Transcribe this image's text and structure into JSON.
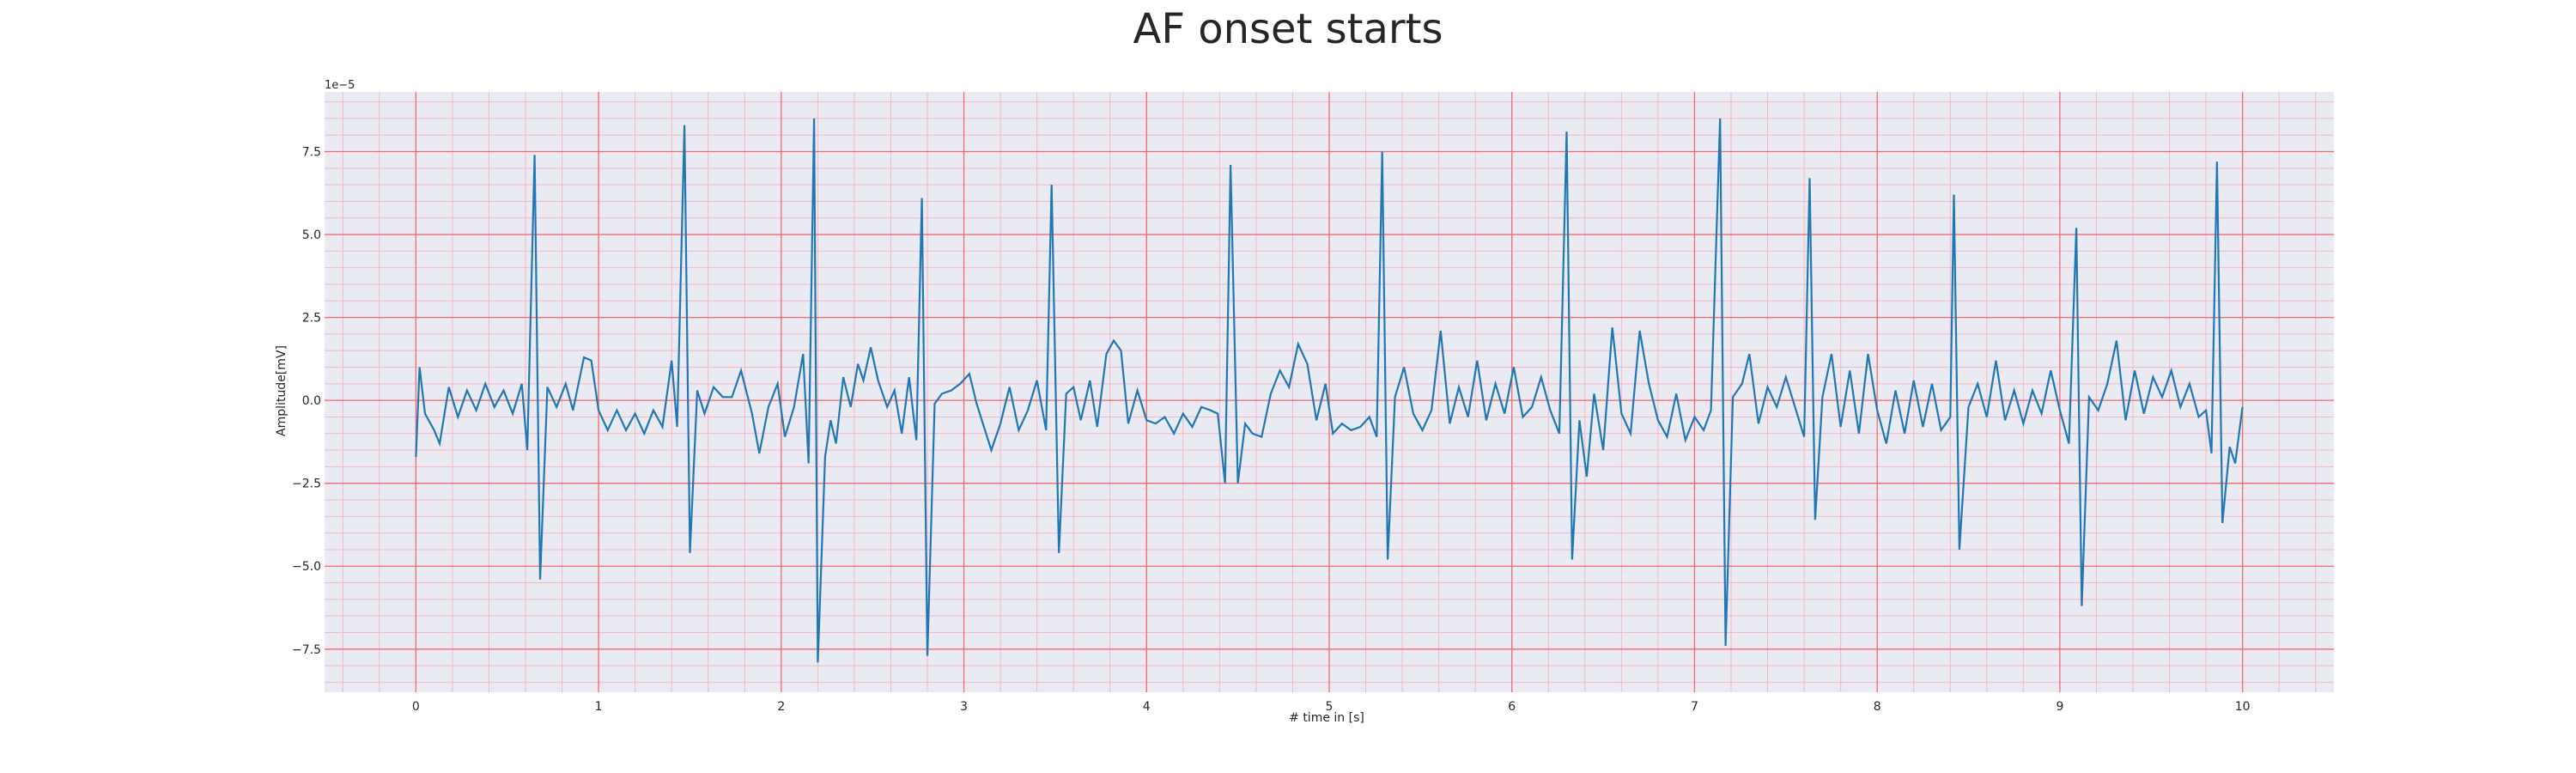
{
  "chart_data": {
    "type": "line",
    "title": "AF onset starts",
    "xlabel": "# time in [s]",
    "ylabel": "Amplitude[mV]",
    "y_offset_label": "1e−5",
    "xlim": [
      -0.5,
      10.5
    ],
    "ylim": [
      -8.8,
      9.3
    ],
    "x_ticks": [
      0,
      1,
      2,
      3,
      4,
      5,
      6,
      7,
      8,
      9,
      10
    ],
    "x_tick_labels": [
      "0",
      "1",
      "2",
      "3",
      "4",
      "5",
      "6",
      "7",
      "8",
      "9",
      "10"
    ],
    "y_ticks": [
      -7.5,
      -5.0,
      -2.5,
      0.0,
      2.5,
      5.0,
      7.5
    ],
    "y_tick_labels": [
      "−7.5",
      "−5.0",
      "−2.5",
      "0.0",
      "2.5",
      "5.0",
      "7.5"
    ],
    "grid": true,
    "minor_grid": true,
    "colors": {
      "background": "#eaeaf2",
      "major_grid": "#f26b6b",
      "minor_grid": "#f5b7c4",
      "line": "#1f77b4",
      "text": "#262626"
    },
    "series": [
      {
        "values": [
          [
            0.0,
            -1.7
          ],
          [
            0.02,
            1.0
          ],
          [
            0.05,
            -0.4
          ],
          [
            0.1,
            -0.9
          ],
          [
            0.13,
            -1.3
          ],
          [
            0.18,
            0.4
          ],
          [
            0.23,
            -0.5
          ],
          [
            0.28,
            0.3
          ],
          [
            0.33,
            -0.3
          ],
          [
            0.38,
            0.5
          ],
          [
            0.43,
            -0.2
          ],
          [
            0.48,
            0.3
          ],
          [
            0.53,
            -0.4
          ],
          [
            0.58,
            0.5
          ],
          [
            0.61,
            -1.5
          ],
          [
            0.65,
            7.4
          ],
          [
            0.68,
            -5.4
          ],
          [
            0.72,
            0.4
          ],
          [
            0.77,
            -0.2
          ],
          [
            0.82,
            0.5
          ],
          [
            0.86,
            -0.3
          ],
          [
            0.92,
            1.3
          ],
          [
            0.96,
            1.2
          ],
          [
            1.0,
            -0.3
          ],
          [
            1.05,
            -0.9
          ],
          [
            1.1,
            -0.3
          ],
          [
            1.15,
            -0.9
          ],
          [
            1.2,
            -0.4
          ],
          [
            1.25,
            -1.0
          ],
          [
            1.3,
            -0.3
          ],
          [
            1.35,
            -0.8
          ],
          [
            1.4,
            1.2
          ],
          [
            1.43,
            -0.8
          ],
          [
            1.47,
            8.3
          ],
          [
            1.5,
            -4.6
          ],
          [
            1.54,
            0.3
          ],
          [
            1.58,
            -0.4
          ],
          [
            1.63,
            0.4
          ],
          [
            1.68,
            0.1
          ],
          [
            1.73,
            0.1
          ],
          [
            1.78,
            0.9
          ],
          [
            1.84,
            -0.4
          ],
          [
            1.88,
            -1.6
          ],
          [
            1.93,
            -0.2
          ],
          [
            1.98,
            0.5
          ],
          [
            2.02,
            -1.1
          ],
          [
            2.07,
            -0.2
          ],
          [
            2.12,
            1.4
          ],
          [
            2.15,
            -1.9
          ],
          [
            2.18,
            8.5
          ],
          [
            2.2,
            -7.9
          ],
          [
            2.24,
            -1.7
          ],
          [
            2.27,
            -0.6
          ],
          [
            2.3,
            -1.3
          ],
          [
            2.34,
            0.7
          ],
          [
            2.38,
            -0.2
          ],
          [
            2.42,
            1.1
          ],
          [
            2.45,
            0.6
          ],
          [
            2.49,
            1.6
          ],
          [
            2.53,
            0.6
          ],
          [
            2.58,
            -0.2
          ],
          [
            2.62,
            0.3
          ],
          [
            2.66,
            -1.0
          ],
          [
            2.7,
            0.7
          ],
          [
            2.74,
            -1.2
          ],
          [
            2.77,
            6.1
          ],
          [
            2.8,
            -7.7
          ],
          [
            2.84,
            -0.1
          ],
          [
            2.88,
            0.2
          ],
          [
            2.93,
            0.3
          ],
          [
            2.98,
            0.5
          ],
          [
            3.03,
            0.8
          ],
          [
            3.07,
            -0.1
          ],
          [
            3.11,
            -0.8
          ],
          [
            3.15,
            -1.5
          ],
          [
            3.2,
            -0.7
          ],
          [
            3.25,
            0.4
          ],
          [
            3.3,
            -0.9
          ],
          [
            3.35,
            -0.3
          ],
          [
            3.4,
            0.6
          ],
          [
            3.45,
            -0.9
          ],
          [
            3.48,
            6.5
          ],
          [
            3.52,
            -4.6
          ],
          [
            3.56,
            0.2
          ],
          [
            3.6,
            0.4
          ],
          [
            3.64,
            -0.6
          ],
          [
            3.69,
            0.6
          ],
          [
            3.73,
            -0.8
          ],
          [
            3.78,
            1.4
          ],
          [
            3.82,
            1.8
          ],
          [
            3.86,
            1.5
          ],
          [
            3.9,
            -0.7
          ],
          [
            3.95,
            0.3
          ],
          [
            4.0,
            -0.6
          ],
          [
            4.05,
            -0.7
          ],
          [
            4.1,
            -0.5
          ],
          [
            4.15,
            -1.0
          ],
          [
            4.2,
            -0.4
          ],
          [
            4.25,
            -0.8
          ],
          [
            4.3,
            -0.2
          ],
          [
            4.35,
            -0.3
          ],
          [
            4.39,
            -0.4
          ],
          [
            4.43,
            -2.5
          ],
          [
            4.46,
            7.1
          ],
          [
            4.5,
            -2.5
          ],
          [
            4.54,
            -0.7
          ],
          [
            4.58,
            -1.0
          ],
          [
            4.63,
            -1.1
          ],
          [
            4.68,
            0.2
          ],
          [
            4.73,
            0.9
          ],
          [
            4.78,
            0.4
          ],
          [
            4.83,
            1.7
          ],
          [
            4.88,
            1.1
          ],
          [
            4.93,
            -0.6
          ],
          [
            4.98,
            0.5
          ],
          [
            5.02,
            -1.0
          ],
          [
            5.07,
            -0.7
          ],
          [
            5.12,
            -0.9
          ],
          [
            5.17,
            -0.8
          ],
          [
            5.22,
            -0.5
          ],
          [
            5.26,
            -1.1
          ],
          [
            5.29,
            7.5
          ],
          [
            5.32,
            -4.8
          ],
          [
            5.36,
            0.1
          ],
          [
            5.41,
            1.0
          ],
          [
            5.46,
            -0.4
          ],
          [
            5.51,
            -0.9
          ],
          [
            5.56,
            -0.3
          ],
          [
            5.61,
            2.1
          ],
          [
            5.66,
            -0.7
          ],
          [
            5.71,
            0.4
          ],
          [
            5.76,
            -0.5
          ],
          [
            5.81,
            1.2
          ],
          [
            5.86,
            -0.6
          ],
          [
            5.91,
            0.5
          ],
          [
            5.96,
            -0.4
          ],
          [
            6.01,
            1.0
          ],
          [
            6.06,
            -0.5
          ],
          [
            6.11,
            -0.2
          ],
          [
            6.16,
            0.7
          ],
          [
            6.21,
            -0.3
          ],
          [
            6.26,
            -1.0
          ],
          [
            6.3,
            8.1
          ],
          [
            6.33,
            -4.8
          ],
          [
            6.37,
            -0.6
          ],
          [
            6.41,
            -2.3
          ],
          [
            6.45,
            0.2
          ],
          [
            6.5,
            -1.5
          ],
          [
            6.55,
            2.2
          ],
          [
            6.6,
            -0.4
          ],
          [
            6.65,
            -1.0
          ],
          [
            6.7,
            2.1
          ],
          [
            6.75,
            0.5
          ],
          [
            6.8,
            -0.6
          ],
          [
            6.85,
            -1.1
          ],
          [
            6.9,
            0.2
          ],
          [
            6.95,
            -1.2
          ],
          [
            7.0,
            -0.5
          ],
          [
            7.05,
            -0.9
          ],
          [
            7.09,
            -0.3
          ],
          [
            7.14,
            8.5
          ],
          [
            7.17,
            -7.4
          ],
          [
            7.21,
            0.1
          ],
          [
            7.26,
            0.5
          ],
          [
            7.3,
            1.4
          ],
          [
            7.35,
            -0.7
          ],
          [
            7.4,
            0.4
          ],
          [
            7.45,
            -0.2
          ],
          [
            7.5,
            0.7
          ],
          [
            7.55,
            -0.2
          ],
          [
            7.6,
            -1.1
          ],
          [
            7.63,
            6.7
          ],
          [
            7.66,
            -3.6
          ],
          [
            7.7,
            0.1
          ],
          [
            7.75,
            1.4
          ],
          [
            7.8,
            -0.8
          ],
          [
            7.85,
            0.9
          ],
          [
            7.9,
            -1.0
          ],
          [
            7.95,
            1.4
          ],
          [
            8.0,
            -0.3
          ],
          [
            8.05,
            -1.3
          ],
          [
            8.1,
            0.3
          ],
          [
            8.15,
            -1.0
          ],
          [
            8.2,
            0.6
          ],
          [
            8.25,
            -0.8
          ],
          [
            8.3,
            0.5
          ],
          [
            8.35,
            -0.9
          ],
          [
            8.4,
            -0.5
          ],
          [
            8.42,
            6.2
          ],
          [
            8.45,
            -4.5
          ],
          [
            8.5,
            -0.2
          ],
          [
            8.55,
            0.5
          ],
          [
            8.6,
            -0.5
          ],
          [
            8.65,
            1.2
          ],
          [
            8.7,
            -0.6
          ],
          [
            8.75,
            0.3
          ],
          [
            8.8,
            -0.7
          ],
          [
            8.85,
            0.3
          ],
          [
            8.9,
            -0.4
          ],
          [
            8.95,
            0.9
          ],
          [
            9.0,
            -0.3
          ],
          [
            9.05,
            -1.3
          ],
          [
            9.09,
            5.2
          ],
          [
            9.12,
            -6.2
          ],
          [
            9.16,
            0.1
          ],
          [
            9.21,
            -0.3
          ],
          [
            9.26,
            0.5
          ],
          [
            9.31,
            1.8
          ],
          [
            9.36,
            -0.6
          ],
          [
            9.41,
            0.9
          ],
          [
            9.46,
            -0.4
          ],
          [
            9.51,
            0.7
          ],
          [
            9.56,
            0.1
          ],
          [
            9.61,
            0.9
          ],
          [
            9.66,
            -0.2
          ],
          [
            9.71,
            0.5
          ],
          [
            9.76,
            -0.5
          ],
          [
            9.8,
            -0.3
          ],
          [
            9.83,
            -1.6
          ],
          [
            9.86,
            7.2
          ],
          [
            9.89,
            -3.7
          ],
          [
            9.93,
            -1.4
          ],
          [
            9.96,
            -1.9
          ],
          [
            10.0,
            -0.2
          ]
        ]
      }
    ]
  }
}
